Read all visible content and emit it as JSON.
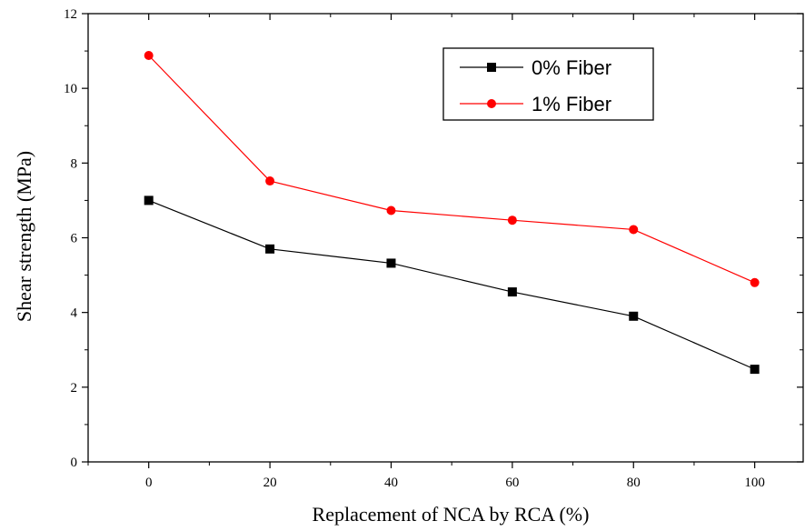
{
  "chart_data": {
    "type": "line",
    "title": "",
    "xlabel": "Replacement of NCA by RCA (%)",
    "ylabel": "Shear strength (MPa)",
    "x": [
      0,
      20,
      40,
      60,
      80,
      100
    ],
    "xlim": [
      -10,
      108
    ],
    "ylim": [
      0,
      12
    ],
    "x_ticks": [
      "0",
      "20",
      "40",
      "60",
      "80",
      "100"
    ],
    "y_ticks": [
      "0",
      "2",
      "4",
      "6",
      "8",
      "10",
      "12"
    ],
    "series": [
      {
        "name": "0% Fiber",
        "values": [
          7.0,
          5.7,
          5.32,
          4.55,
          3.9,
          2.48
        ],
        "color": "#000000",
        "marker": "square"
      },
      {
        "name": "1% Fiber",
        "values": [
          10.88,
          7.52,
          6.73,
          6.47,
          6.22,
          4.8
        ],
        "color": "#ff0000",
        "marker": "circle"
      }
    ],
    "legend": "top-right",
    "grid": false
  }
}
